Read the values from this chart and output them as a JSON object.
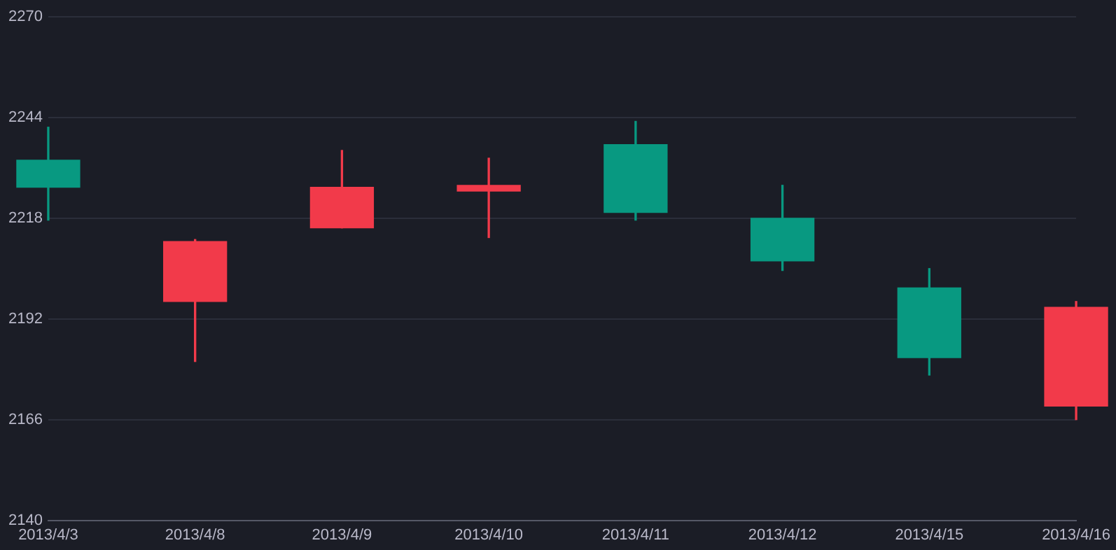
{
  "chart_data": {
    "type": "candlestick",
    "categories": [
      "2013/4/3",
      "2013/4/8",
      "2013/4/9",
      "2013/4/10",
      "2013/4/11",
      "2013/4/12",
      "2013/4/15",
      "2013/4/16"
    ],
    "ohlc": [
      [
        2233,
        2241.5,
        2217.5,
        2226
      ],
      [
        2196.5,
        2212.5,
        2181,
        2212
      ],
      [
        2215.5,
        2235.5,
        2215.5,
        2226
      ],
      [
        2225,
        2233.5,
        2213,
        2226.5
      ],
      [
        2237,
        2243,
        2217.5,
        2219.5
      ],
      [
        2218,
        2226.5,
        2204.5,
        2207
      ],
      [
        2200,
        2205,
        2177.5,
        2182
      ],
      [
        2169.5,
        2196.5,
        2166,
        2195
      ]
    ],
    "colors": [
      "#089981",
      "#f23a4a",
      "#f23a4a",
      "#f23a4a",
      "#089981",
      "#089981",
      "#089981",
      "#f23a4a"
    ],
    "ylim": [
      2140,
      2270
    ],
    "yticks": [
      2140,
      2166,
      2192,
      2218,
      2244,
      2270
    ],
    "grid": "y",
    "legend": false
  }
}
